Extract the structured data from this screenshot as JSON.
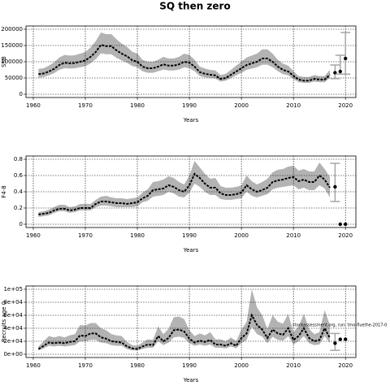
{
  "chart_data": [
    {
      "type": "line",
      "title": "SQ then zero",
      "xlabel": "Years",
      "ylabel": "SSB",
      "x": [
        1961,
        1962,
        1963,
        1964,
        1965,
        1966,
        1967,
        1968,
        1969,
        1970,
        1971,
        1972,
        1973,
        1974,
        1975,
        1976,
        1977,
        1978,
        1979,
        1980,
        1981,
        1982,
        1983,
        1984,
        1985,
        1986,
        1987,
        1988,
        1989,
        1990,
        1991,
        1992,
        1993,
        1994,
        1995,
        1996,
        1997,
        1998,
        1999,
        2000,
        2001,
        2002,
        2003,
        2004,
        2005,
        2006,
        2007,
        2008,
        2009,
        2010,
        2011,
        2012,
        2013,
        2014,
        2015,
        2016,
        2017
      ],
      "values": [
        62000,
        64000,
        70000,
        78000,
        90000,
        97000,
        95000,
        96000,
        100000,
        104000,
        115000,
        130000,
        152000,
        148000,
        148000,
        135000,
        125000,
        117000,
        105000,
        100000,
        85000,
        80000,
        80000,
        85000,
        92000,
        88000,
        88000,
        92000,
        100000,
        97000,
        85000,
        68000,
        63000,
        60000,
        58000,
        47000,
        50000,
        60000,
        70000,
        80000,
        90000,
        95000,
        100000,
        110000,
        110000,
        100000,
        85000,
        75000,
        70000,
        57000,
        45000,
        42000,
        42000,
        47000,
        45000,
        45000,
        60000
      ],
      "lower": [
        51000,
        53000,
        58000,
        65000,
        75000,
        80000,
        79000,
        80000,
        83000,
        86000,
        95000,
        108000,
        126000,
        123000,
        123000,
        112000,
        104000,
        97000,
        87000,
        83000,
        71000,
        66000,
        66000,
        71000,
        76000,
        73000,
        73000,
        76000,
        83000,
        80000,
        71000,
        56000,
        52000,
        50000,
        48000,
        39000,
        42000,
        50000,
        58000,
        66000,
        75000,
        79000,
        83000,
        91000,
        91000,
        83000,
        71000,
        62000,
        58000,
        47000,
        37000,
        35000,
        35000,
        39000,
        37000,
        37000,
        50000
      ],
      "upper": [
        78000,
        80000,
        88000,
        98000,
        113000,
        121000,
        119000,
        120000,
        125000,
        130000,
        144000,
        163000,
        190000,
        185000,
        185000,
        169000,
        156000,
        146000,
        131000,
        125000,
        106000,
        100000,
        100000,
        106000,
        115000,
        110000,
        110000,
        115000,
        125000,
        121000,
        106000,
        85000,
        79000,
        75000,
        73000,
        59000,
        63000,
        75000,
        88000,
        100000,
        113000,
        119000,
        125000,
        138000,
        138000,
        125000,
        106000,
        94000,
        88000,
        71000,
        56000,
        53000,
        53000,
        59000,
        56000,
        56000,
        75000
      ],
      "forecast": {
        "x": [
          2018,
          2019,
          2020
        ],
        "values": [
          66000,
          70000,
          110000
        ],
        "lower": [
          48000,
          62000,
          62000
        ],
        "upper": [
          90000,
          120000,
          190000
        ]
      },
      "xlim": [
        1958.6,
        2022.0
      ],
      "xticks": [
        1960,
        1970,
        1980,
        1990,
        2000,
        2010,
        2020
      ],
      "ylim": [
        -10000,
        210000
      ],
      "yticks": [
        0,
        50000,
        100000,
        150000,
        200000
      ],
      "grid": true,
      "color": "#000000",
      "band_color": "#b3b3b3",
      "error_color": "#a6a6a6"
    },
    {
      "type": "line",
      "xlabel": "Years",
      "ylabel": "F4-8",
      "x": [
        1961,
        1962,
        1963,
        1964,
        1965,
        1966,
        1967,
        1968,
        1969,
        1970,
        1971,
        1972,
        1973,
        1974,
        1975,
        1976,
        1977,
        1978,
        1979,
        1980,
        1981,
        1982,
        1983,
        1984,
        1985,
        1986,
        1987,
        1988,
        1989,
        1990,
        1991,
        1992,
        1993,
        1994,
        1995,
        1996,
        1997,
        1998,
        1999,
        2000,
        2001,
        2002,
        2003,
        2004,
        2005,
        2006,
        2007,
        2008,
        2009,
        2010,
        2011,
        2012,
        2013,
        2014,
        2015,
        2016,
        2017
      ],
      "values": [
        0.12,
        0.13,
        0.14,
        0.17,
        0.19,
        0.19,
        0.17,
        0.18,
        0.2,
        0.2,
        0.2,
        0.25,
        0.28,
        0.28,
        0.27,
        0.26,
        0.26,
        0.25,
        0.26,
        0.27,
        0.32,
        0.35,
        0.42,
        0.43,
        0.44,
        0.48,
        0.46,
        0.42,
        0.4,
        0.48,
        0.62,
        0.57,
        0.5,
        0.45,
        0.45,
        0.38,
        0.36,
        0.36,
        0.37,
        0.39,
        0.48,
        0.43,
        0.4,
        0.42,
        0.45,
        0.52,
        0.54,
        0.55,
        0.57,
        0.58,
        0.53,
        0.55,
        0.52,
        0.52,
        0.6,
        0.55,
        0.45
      ],
      "lower": [
        0.09,
        0.1,
        0.11,
        0.14,
        0.16,
        0.16,
        0.14,
        0.15,
        0.17,
        0.17,
        0.17,
        0.21,
        0.23,
        0.23,
        0.22,
        0.21,
        0.21,
        0.21,
        0.21,
        0.22,
        0.27,
        0.29,
        0.34,
        0.35,
        0.36,
        0.4,
        0.38,
        0.34,
        0.33,
        0.39,
        0.5,
        0.46,
        0.4,
        0.36,
        0.36,
        0.31,
        0.3,
        0.3,
        0.31,
        0.32,
        0.4,
        0.35,
        0.33,
        0.35,
        0.37,
        0.43,
        0.45,
        0.46,
        0.47,
        0.48,
        0.43,
        0.45,
        0.42,
        0.42,
        0.48,
        0.44,
        0.33
      ],
      "upper": [
        0.15,
        0.16,
        0.18,
        0.21,
        0.24,
        0.24,
        0.21,
        0.22,
        0.25,
        0.25,
        0.25,
        0.3,
        0.34,
        0.35,
        0.33,
        0.32,
        0.32,
        0.31,
        0.32,
        0.33,
        0.39,
        0.43,
        0.52,
        0.53,
        0.55,
        0.59,
        0.57,
        0.52,
        0.49,
        0.6,
        0.78,
        0.7,
        0.62,
        0.56,
        0.57,
        0.47,
        0.45,
        0.45,
        0.46,
        0.48,
        0.6,
        0.53,
        0.49,
        0.52,
        0.56,
        0.64,
        0.67,
        0.68,
        0.71,
        0.72,
        0.66,
        0.68,
        0.65,
        0.65,
        0.76,
        0.68,
        0.58
      ],
      "forecast": {
        "x": [
          2018,
          2019,
          2020
        ],
        "values": [
          0.46,
          0,
          0
        ],
        "lower": [
          0.28,
          null,
          null
        ],
        "upper": [
          0.75,
          null,
          null
        ]
      },
      "xlim": [
        1958.6,
        2022.0
      ],
      "xticks": [
        1960,
        1970,
        1980,
        1990,
        2000,
        2010,
        2020
      ],
      "ylim": [
        -0.04,
        0.84
      ],
      "yticks": [
        0,
        0.2,
        0.4,
        0.6,
        0.8
      ],
      "grid": true,
      "color": "#000000",
      "band_color": "#b3b3b3",
      "error_color": "#a6a6a6"
    },
    {
      "type": "line",
      "xlabel": "Years",
      "ylabel": "Recruits age 0",
      "annotation": "stockassessment.org, run: tmo-fluethe-2017-0",
      "x": [
        1961,
        1962,
        1963,
        1964,
        1965,
        1966,
        1967,
        1968,
        1969,
        1970,
        1971,
        1972,
        1973,
        1974,
        1975,
        1976,
        1977,
        1978,
        1979,
        1980,
        1981,
        1982,
        1983,
        1984,
        1985,
        1986,
        1987,
        1988,
        1989,
        1990,
        1991,
        1992,
        1993,
        1994,
        1995,
        1996,
        1997,
        1998,
        1999,
        2000,
        2001,
        2002,
        2003,
        2004,
        2005,
        2006,
        2007,
        2008,
        2009,
        2010,
        2011,
        2012,
        2013,
        2014,
        2015,
        2016,
        2017
      ],
      "values": [
        8000,
        13000,
        18000,
        17000,
        18000,
        17000,
        19000,
        20000,
        29000,
        28000,
        32000,
        32000,
        26000,
        24000,
        20000,
        19000,
        18000,
        12000,
        9000,
        8000,
        12000,
        15000,
        14000,
        28000,
        20000,
        25000,
        37000,
        38000,
        35000,
        24000,
        18000,
        21000,
        19000,
        22000,
        15000,
        15000,
        13000,
        17000,
        13000,
        25000,
        32000,
        60000,
        45000,
        38000,
        25000,
        38000,
        32000,
        30000,
        40000,
        22000,
        28000,
        40000,
        25000,
        20000,
        22000,
        40000,
        25000
      ],
      "lower": [
        6000,
        9000,
        13000,
        12000,
        13000,
        12000,
        13000,
        14000,
        20000,
        20000,
        22000,
        22000,
        18000,
        17000,
        14000,
        13000,
        13000,
        8000,
        6000,
        6000,
        8000,
        10000,
        10000,
        20000,
        14000,
        18000,
        26000,
        27000,
        25000,
        17000,
        13000,
        15000,
        13000,
        15000,
        10000,
        10000,
        9000,
        12000,
        9000,
        17000,
        22000,
        42000,
        31000,
        27000,
        17000,
        27000,
        22000,
        21000,
        28000,
        15000,
        20000,
        28000,
        17000,
        14000,
        15000,
        28000,
        17000
      ],
      "upper": [
        12000,
        20000,
        28000,
        26000,
        28000,
        26000,
        29000,
        31000,
        45000,
        44000,
        48000,
        48000,
        40000,
        37000,
        31000,
        29000,
        28000,
        19000,
        14000,
        13000,
        18000,
        23000,
        22000,
        43000,
        31000,
        39000,
        57000,
        58000,
        54000,
        37000,
        28000,
        32000,
        29000,
        34000,
        23000,
        23000,
        20000,
        26000,
        20000,
        38000,
        50000,
        100000,
        72000,
        60000,
        39000,
        60000,
        50000,
        47000,
        62000,
        34000,
        43000,
        62000,
        39000,
        31000,
        34000,
        68000,
        45000
      ],
      "forecast": {
        "x": [
          2018,
          2019,
          2020
        ],
        "values": [
          17000,
          23000,
          23000
        ],
        "lower": [
          6000,
          null,
          null
        ],
        "upper": [
          32000,
          null,
          null
        ]
      },
      "xlim": [
        1958.6,
        2022.0
      ],
      "xticks": [
        1960,
        1970,
        1980,
        1990,
        2000,
        2010,
        2020
      ],
      "ylim": [
        -5000,
        105000
      ],
      "yticks": [
        {
          "value": 0,
          "label": "0e+00"
        },
        {
          "value": 20000,
          "label": "2e+04"
        },
        {
          "value": 40000,
          "label": "4e+04"
        },
        {
          "value": 60000,
          "label": "6e+04"
        },
        {
          "value": 80000,
          "label": "8e+04"
        },
        {
          "value": 100000,
          "label": "1e+05"
        }
      ],
      "grid": true,
      "color": "#000000",
      "band_color": "#b3b3b3",
      "error_color": "#a6a6a6"
    }
  ]
}
